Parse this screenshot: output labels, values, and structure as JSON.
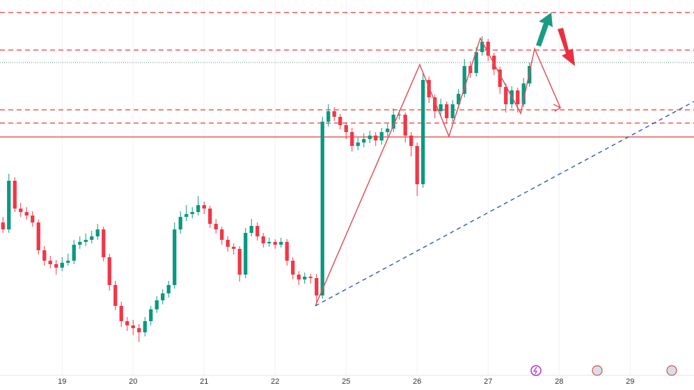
{
  "chart_data": {
    "type": "candlestick",
    "xlim": [
      -0.5,
      116.8
    ],
    "xticks": [
      {
        "value": 10,
        "label": "19"
      },
      {
        "value": 22,
        "label": "20"
      },
      {
        "value": 34,
        "label": "21"
      },
      {
        "value": 46,
        "label": "22"
      },
      {
        "value": 58,
        "label": "25"
      },
      {
        "value": 70,
        "label": "26"
      },
      {
        "value": 82,
        "label": "27"
      },
      {
        "value": 94,
        "label": "28"
      },
      {
        "value": 106,
        "label": "29"
      }
    ],
    "ylim": [
      0,
      540
    ],
    "grid": true,
    "up_color": "#089981",
    "down_color": "#f23645",
    "open": [
      220,
      210,
      280,
      240,
      235,
      230,
      220,
      180,
      165,
      160,
      155,
      162,
      165,
      188,
      192,
      195,
      200,
      210,
      170,
      130,
      100,
      78,
      72,
      68,
      62,
      78,
      95,
      108,
      118,
      130,
      210,
      228,
      232,
      235,
      245,
      240,
      218,
      210,
      195,
      185,
      182,
      145,
      205,
      215,
      200,
      190,
      192,
      188,
      192,
      165,
      145,
      138,
      142,
      140,
      115,
      365,
      380,
      372,
      360,
      350,
      330,
      335,
      340,
      345,
      338,
      350,
      355,
      375,
      375,
      345,
      330,
      275,
      425,
      400,
      380,
      390,
      370,
      390,
      405,
      445,
      435,
      465,
      480,
      460,
      440,
      415,
      390,
      410,
      390,
      420
    ],
    "high": [
      228,
      290,
      285,
      248,
      242,
      236,
      224,
      186,
      172,
      166,
      170,
      175,
      195,
      200,
      204,
      208,
      218,
      214,
      175,
      136,
      106,
      84,
      80,
      74,
      84,
      100,
      114,
      124,
      136,
      220,
      236,
      245,
      242,
      258,
      250,
      244,
      225,
      214,
      200,
      190,
      186,
      212,
      225,
      220,
      205,
      198,
      196,
      198,
      196,
      170,
      150,
      148,
      146,
      146,
      372,
      390,
      386,
      376,
      364,
      356,
      342,
      348,
      352,
      350,
      356,
      362,
      384,
      382,
      378,
      350,
      335,
      435,
      430,
      404,
      398,
      394,
      396,
      412,
      455,
      452,
      472,
      488,
      484,
      464,
      444,
      420,
      416,
      414,
      428,
      450
    ],
    "low": [
      205,
      205,
      235,
      228,
      224,
      214,
      174,
      158,
      154,
      145,
      150,
      158,
      160,
      182,
      186,
      190,
      195,
      164,
      122,
      94,
      70,
      64,
      58,
      48,
      56,
      72,
      90,
      102,
      112,
      125,
      204,
      222,
      226,
      230,
      232,
      212,
      204,
      188,
      178,
      174,
      135,
      140,
      200,
      194,
      184,
      185,
      182,
      184,
      158,
      138,
      130,
      132,
      132,
      105,
      110,
      358,
      366,
      354,
      340,
      322,
      324,
      328,
      334,
      330,
      332,
      344,
      350,
      368,
      335,
      315,
      258,
      270,
      392,
      370,
      372,
      362,
      365,
      384,
      400,
      428,
      430,
      460,
      452,
      432,
      405,
      378,
      384,
      378,
      386,
      415
    ],
    "close": [
      210,
      280,
      240,
      235,
      230,
      220,
      180,
      165,
      160,
      155,
      162,
      165,
      188,
      192,
      195,
      200,
      210,
      170,
      130,
      100,
      78,
      72,
      68,
      62,
      78,
      95,
      108,
      118,
      130,
      210,
      228,
      232,
      235,
      245,
      240,
      218,
      210,
      195,
      185,
      182,
      145,
      205,
      215,
      200,
      190,
      192,
      188,
      192,
      165,
      145,
      138,
      142,
      140,
      115,
      365,
      380,
      372,
      360,
      350,
      330,
      335,
      340,
      345,
      338,
      350,
      355,
      375,
      375,
      345,
      330,
      275,
      425,
      400,
      380,
      390,
      370,
      390,
      405,
      445,
      435,
      465,
      480,
      460,
      440,
      415,
      390,
      410,
      390,
      420,
      445
    ],
    "levels": [
      {
        "value": 522,
        "style": "dashed",
        "color": "#e53935"
      },
      {
        "value": 468,
        "style": "dashed",
        "color": "#e53935"
      },
      {
        "value": 450,
        "style": "dotted",
        "color": "#4f8f7a"
      },
      {
        "value": 382,
        "style": "dashed",
        "color": "#e53935"
      },
      {
        "value": 363,
        "style": "dashed",
        "color": "#e53935"
      },
      {
        "value": 343,
        "style": "solid",
        "color": "#e53935"
      }
    ]
  }
}
